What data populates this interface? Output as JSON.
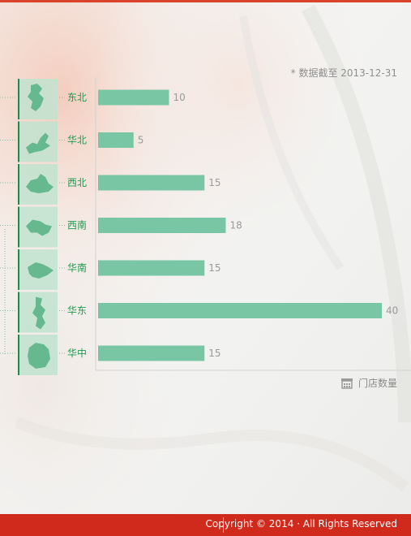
{
  "note": "* 数据截至 2013-12-31",
  "legend_label": "门店数量",
  "legend_icon": "store-icon",
  "footer": {
    "copyright": "Copyright © 2014 · All Rights Reserved"
  },
  "colors": {
    "bar": "#79c6a5",
    "value_label": "#9a9a9a",
    "region_label": "#1f9a52",
    "accent": "#1f8a4c",
    "footer_bg": "#d02a1c"
  },
  "chart_data": {
    "type": "bar",
    "orientation": "horizontal",
    "categories": [
      "东北",
      "华北",
      "西北",
      "西南",
      "华南",
      "华东",
      "华中"
    ],
    "values": [
      10,
      5,
      15,
      18,
      15,
      40,
      15
    ],
    "region_icons": [
      "northeast-map-icon",
      "north-map-icon",
      "northwest-map-icon",
      "southwest-map-icon",
      "south-map-icon",
      "east-map-icon",
      "central-map-icon"
    ],
    "title": "",
    "xlabel": "",
    "ylabel": "",
    "xlim": [
      0,
      40
    ],
    "grid": false,
    "legend_position": "bottom-right"
  }
}
